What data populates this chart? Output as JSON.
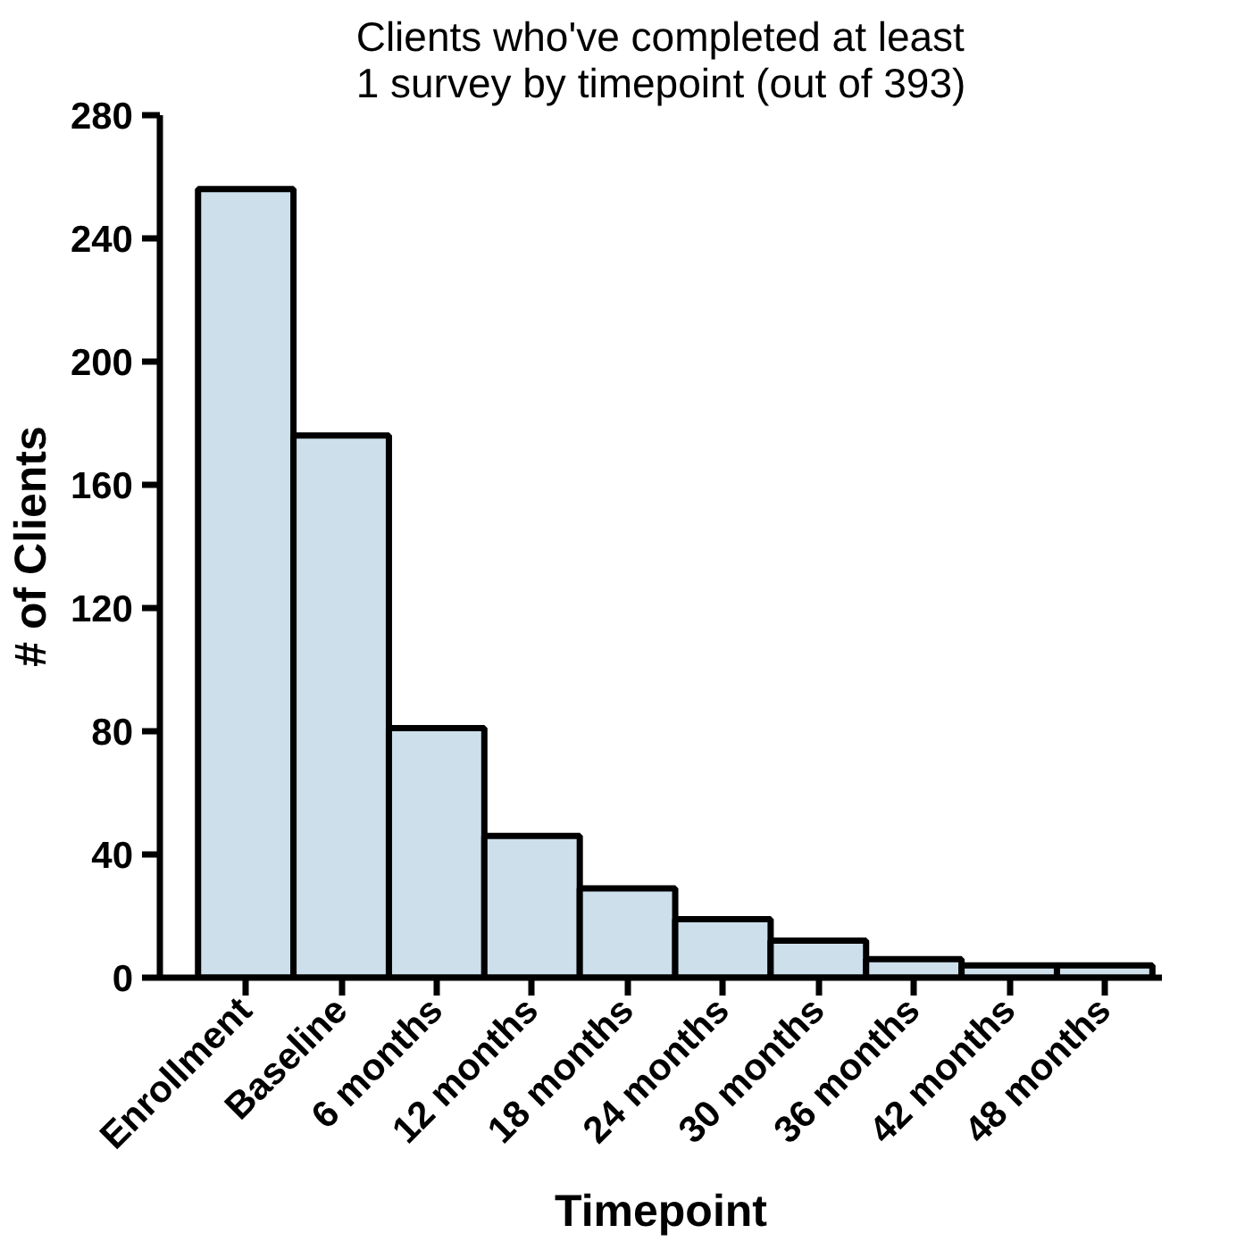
{
  "chart_data": {
    "type": "bar",
    "title": "Clients who've completed at least\n1 survey by timepoint (out of 393)",
    "xlabel": "Timepoint",
    "ylabel": "# of Clients",
    "categories": [
      "Enrollment",
      "Baseline",
      "6 months",
      "12 months",
      "18 months",
      "24 months",
      "30 months",
      "36 months",
      "42 months",
      "48 months"
    ],
    "values": [
      256,
      176,
      81,
      46,
      29,
      19,
      12,
      6,
      4,
      4
    ],
    "color": "#cddfea",
    "ylim": [
      0,
      280
    ],
    "yticks": [
      0,
      40,
      80,
      120,
      160,
      200,
      240,
      280
    ],
    "grid": false
  }
}
